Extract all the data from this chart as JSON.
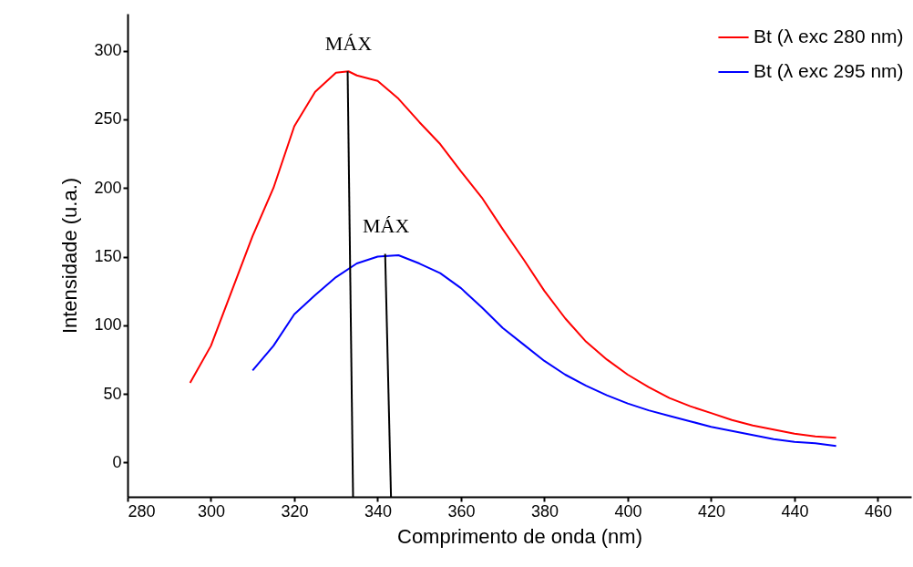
{
  "chart_data": {
    "type": "line",
    "xlabel": "Comprimento de onda (nm)",
    "ylabel": "Intensidade (u.a.)",
    "xlim": [
      280,
      468
    ],
    "ylim": [
      -25,
      327
    ],
    "xticks": [
      280,
      300,
      320,
      340,
      360,
      380,
      400,
      420,
      440,
      460
    ],
    "yticks": [
      0,
      50,
      100,
      150,
      200,
      250,
      300
    ],
    "grid": false,
    "legend": "top right",
    "marker": "none",
    "line_style": "solid",
    "series": [
      {
        "name": "Bt (λ exc 280 nm)",
        "color": "#ff0000",
        "x": [
          295,
          300,
          305,
          310,
          315,
          320,
          325,
          330,
          333,
          335,
          340,
          345,
          350,
          355,
          360,
          365,
          370,
          375,
          380,
          385,
          390,
          395,
          400,
          405,
          410,
          415,
          420,
          425,
          430,
          435,
          440,
          445,
          450
        ],
        "values": [
          58,
          85,
          125,
          165,
          200,
          245,
          270,
          284,
          285,
          282,
          278,
          265,
          248,
          232,
          212,
          193,
          170,
          148,
          125,
          105,
          88,
          75,
          64,
          55,
          47,
          41,
          36,
          31,
          27,
          24,
          21,
          19,
          18
        ]
      },
      {
        "name": "Bt (λ exc 295 nm)",
        "color": "#0000ff",
        "x": [
          310,
          315,
          320,
          325,
          330,
          335,
          340,
          345,
          350,
          355,
          360,
          365,
          370,
          375,
          380,
          385,
          390,
          395,
          400,
          405,
          410,
          415,
          420,
          425,
          430,
          435,
          440,
          445,
          450
        ],
        "values": [
          67,
          85,
          108,
          122,
          135,
          145,
          150,
          151,
          145,
          138,
          127,
          113,
          98,
          86,
          74,
          64,
          56,
          49,
          43,
          38,
          34,
          30,
          26,
          23,
          20,
          17,
          15,
          14,
          12
        ]
      },
      {
        "color": "#000000",
        "x": [
          332.8,
          334.1
        ],
        "values": [
          285,
          -25
        ]
      },
      {
        "color": "#000000",
        "x": [
          341.8,
          343.2
        ],
        "values": [
          152,
          -25
        ]
      }
    ],
    "annotations": [
      {
        "text": "MÁX",
        "x": 333,
        "y": 285
      },
      {
        "text": "MÁX",
        "x": 342,
        "y": 152
      }
    ]
  }
}
